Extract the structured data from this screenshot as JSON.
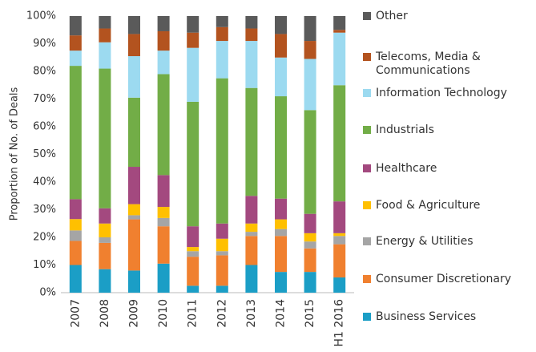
{
  "chart_data": {
    "type": "stacked-bar",
    "y_label": "Proportion of No. of Deals",
    "categories": [
      "2007",
      "2008",
      "2009",
      "2010",
      "2011",
      "2012",
      "2013",
      "2014",
      "2015",
      "H1 2016"
    ],
    "series": [
      {
        "name": "Business Services",
        "color": "#1b9ec6",
        "values": [
          10,
          8.5,
          8,
          10.5,
          2.5,
          2.5,
          10,
          7.5,
          7.5,
          5.5
        ]
      },
      {
        "name": "Consumer Discretionary",
        "color": "#f0802f",
        "values": [
          8.7,
          9.5,
          18.5,
          13.5,
          10.5,
          11,
          10.5,
          13,
          8.5,
          12
        ]
      },
      {
        "name": "Energy & Utilities",
        "color": "#a5a5a5",
        "values": [
          3.8,
          2,
          1.5,
          3,
          2,
          1.5,
          1.5,
          2.5,
          2.5,
          3
        ]
      },
      {
        "name": "Food & Agriculture",
        "color": "#ffc000",
        "values": [
          4.1,
          5,
          4,
          4,
          1.5,
          4.5,
          3,
          3.5,
          3,
          1
        ]
      },
      {
        "name": "Healthcare",
        "color": "#a3497f",
        "values": [
          7.2,
          5.5,
          13.5,
          11.5,
          7.5,
          5.5,
          10,
          7.5,
          7,
          11.5
        ]
      },
      {
        "name": "Industrials",
        "color": "#72ad47",
        "values": [
          48.2,
          50.5,
          25,
          36.5,
          45,
          52.5,
          39,
          37,
          37.5,
          42
        ]
      },
      {
        "name": "Information Technology",
        "color": "#9cdaf0",
        "values": [
          5.5,
          9.5,
          15,
          8.5,
          19.5,
          13.5,
          17,
          14,
          18.5,
          19
        ]
      },
      {
        "name": "Telecoms, Media & Communications",
        "color": "#b3531f",
        "values": [
          5.5,
          5,
          8,
          7,
          5.5,
          5,
          4.5,
          8.5,
          6.5,
          1
        ]
      },
      {
        "name": "Other",
        "color": "#5a5a5a",
        "values": [
          7,
          4.5,
          6.5,
          5.5,
          6,
          4,
          4.5,
          6.5,
          9,
          5
        ]
      }
    ],
    "ylim": [
      0,
      100
    ],
    "yticks": [
      {
        "value": 0,
        "label": "0%"
      },
      {
        "value": 10,
        "label": "10%"
      },
      {
        "value": 20,
        "label": "20%"
      },
      {
        "value": 30,
        "label": "30%"
      },
      {
        "value": 40,
        "label": "40%"
      },
      {
        "value": 50,
        "label": "50%"
      },
      {
        "value": 60,
        "label": "60%"
      },
      {
        "value": 70,
        "label": "70%"
      },
      {
        "value": 80,
        "label": "80%"
      },
      {
        "value": 90,
        "label": "90%"
      },
      {
        "value": 100,
        "label": "100%"
      }
    ],
    "grid": false,
    "legend": "right"
  }
}
